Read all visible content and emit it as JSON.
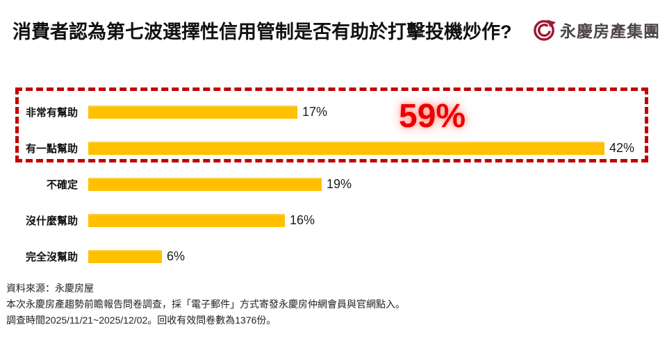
{
  "header": {
    "title": "消費者認為第七波選擇性信用管制是否有助於打擊投機炒作?",
    "logo_text": "永慶房產集團",
    "logo_color": "#9b1b35"
  },
  "chart_data": {
    "type": "bar",
    "orientation": "horizontal",
    "categories": [
      "非常有幫助",
      "有一點幫助",
      "不確定",
      "沒什麼幫助",
      "完全沒幫助"
    ],
    "values": [
      17,
      42,
      19,
      16,
      6
    ],
    "value_labels": [
      "17%",
      "42%",
      "19%",
      "16%",
      "6%"
    ],
    "bar_color": "#FFC000",
    "xlim": [
      0,
      45
    ],
    "grid": false,
    "legend": false,
    "highlight": {
      "label": "59%",
      "covered_categories": [
        "非常有幫助",
        "有一點幫助"
      ],
      "box_color": "#C00000",
      "text_color": "#EA0000"
    }
  },
  "footer": {
    "lines": [
      "資料來源：永慶房屋",
      "本次永慶房產趨勢前瞻報告問卷調查，採「電子郵件」方式寄發永慶房仲網會員與官網點入。",
      "調查時間2025/11/21~2025/12/02。回收有效問卷數為1376份。"
    ]
  }
}
